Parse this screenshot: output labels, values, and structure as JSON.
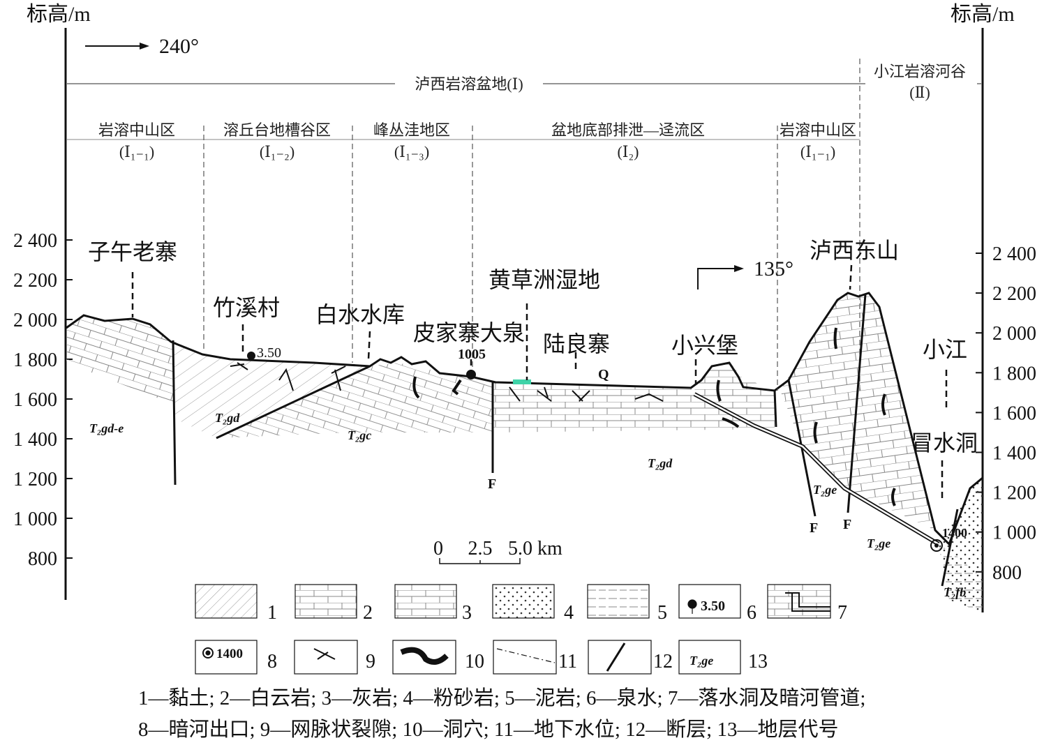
{
  "axes": {
    "left_label": "标高/m",
    "right_label": "标高/m",
    "left_ticks": [
      "2 400",
      "2 200",
      "2 000",
      "1 800",
      "1 600",
      "1 400",
      "1 200",
      "1 000",
      "800"
    ],
    "right_ticks": [
      "2 400",
      "2 200",
      "2 000",
      "1 800",
      "1 600",
      "1 400",
      "1 200",
      "1 000",
      "800"
    ]
  },
  "directions": {
    "main": "240°",
    "secondary": "135°"
  },
  "regions": {
    "basin": "泸西岩溶盆地(Ⅰ)",
    "valley": "小江岩溶河谷",
    "valley_code": "(Ⅱ)"
  },
  "zones": [
    {
      "name": "岩溶中山区",
      "code": "(Ⅰ₁₋₁)"
    },
    {
      "name": "溶丘台地槽谷区",
      "code": "(Ⅰ₁₋₂)"
    },
    {
      "name": "峰丛洼地区",
      "code": "(Ⅰ₁₋₃)"
    },
    {
      "name": "盆地底部排泄—迳流区",
      "code": "(Ⅰ₂)"
    },
    {
      "name": "岩溶中山区",
      "code": "(Ⅰ₁₋₁)"
    }
  ],
  "places": [
    "子午老寨",
    "竹溪村",
    "白水水库",
    "皮家寨大泉",
    "黄草洲湿地",
    "陆良寨",
    "小兴堡",
    "泸西东山",
    "小江",
    "冒水洞"
  ],
  "values": {
    "spring1": "3.50",
    "spring2": "1005",
    "outlet": "1400"
  },
  "strata": [
    "T₂gd-e",
    "T₂gd",
    "T₂gc",
    "T₂gd",
    "T₂ge",
    "T₂ge",
    "T₂fb"
  ],
  "markers": {
    "fault": "F",
    "quaternary": "Q"
  },
  "scale": {
    "labels": [
      "0",
      "2.5",
      "5.0 km"
    ]
  },
  "legend": [
    {
      "num": "1"
    },
    {
      "num": "2"
    },
    {
      "num": "3"
    },
    {
      "num": "4"
    },
    {
      "num": "5"
    },
    {
      "num": "6",
      "sample": "3.50"
    },
    {
      "num": "7"
    },
    {
      "num": "8",
      "sample": "1400"
    },
    {
      "num": "9"
    },
    {
      "num": "10"
    },
    {
      "num": "11"
    },
    {
      "num": "12"
    },
    {
      "num": "13",
      "sample": "T₂ge"
    }
  ],
  "caption": [
    "1—黏土; 2—白云岩; 3—灰岩; 4—粉砂岩; 5—泥岩; 6—泉水; 7—落水洞及暗河管道;",
    "8—暗河出口; 9—网脉状裂隙; 10—洞穴; 11—地下水位; 12—断层; 13—地层代号"
  ],
  "colors": {
    "wetland": "#3fd3a8",
    "line": "#111111"
  }
}
